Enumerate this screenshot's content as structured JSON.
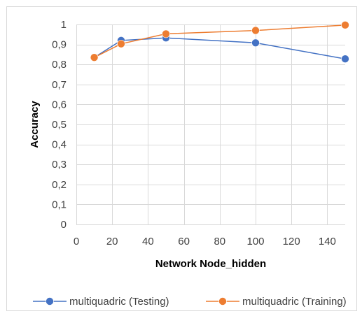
{
  "chart_data": {
    "type": "scatter",
    "title": "",
    "xlabel": "Network Node_hidden",
    "ylabel": "Accuracy",
    "xlim": [
      0,
      150
    ],
    "ylim": [
      0,
      1
    ],
    "xticks": [
      0,
      20,
      40,
      60,
      80,
      100,
      120,
      140
    ],
    "yticks": [
      0,
      0.1,
      0.2,
      0.3,
      0.4,
      0.5,
      0.6,
      0.7,
      0.8,
      0.9,
      1
    ],
    "xtick_labels": [
      "0",
      "20",
      "40",
      "60",
      "80",
      "100",
      "120",
      "140"
    ],
    "ytick_labels": [
      "0",
      "0,1",
      "0,2",
      "0,3",
      "0,4",
      "0,5",
      "0,6",
      "0,7",
      "0,8",
      "0,9",
      "1"
    ],
    "grid": "both",
    "legend_position": "bottom",
    "series": [
      {
        "name": "multiquadric (Testing)",
        "color": "#4472c4",
        "x": [
          10,
          25,
          50,
          100,
          150
        ],
        "y": [
          0.835,
          0.92,
          0.933,
          0.908,
          0.828
        ]
      },
      {
        "name": "multiquadric (Training)",
        "color": "#ed7d31",
        "x": [
          10,
          25,
          50,
          100,
          150
        ],
        "y": [
          0.835,
          0.903,
          0.953,
          0.97,
          0.997
        ]
      }
    ]
  }
}
